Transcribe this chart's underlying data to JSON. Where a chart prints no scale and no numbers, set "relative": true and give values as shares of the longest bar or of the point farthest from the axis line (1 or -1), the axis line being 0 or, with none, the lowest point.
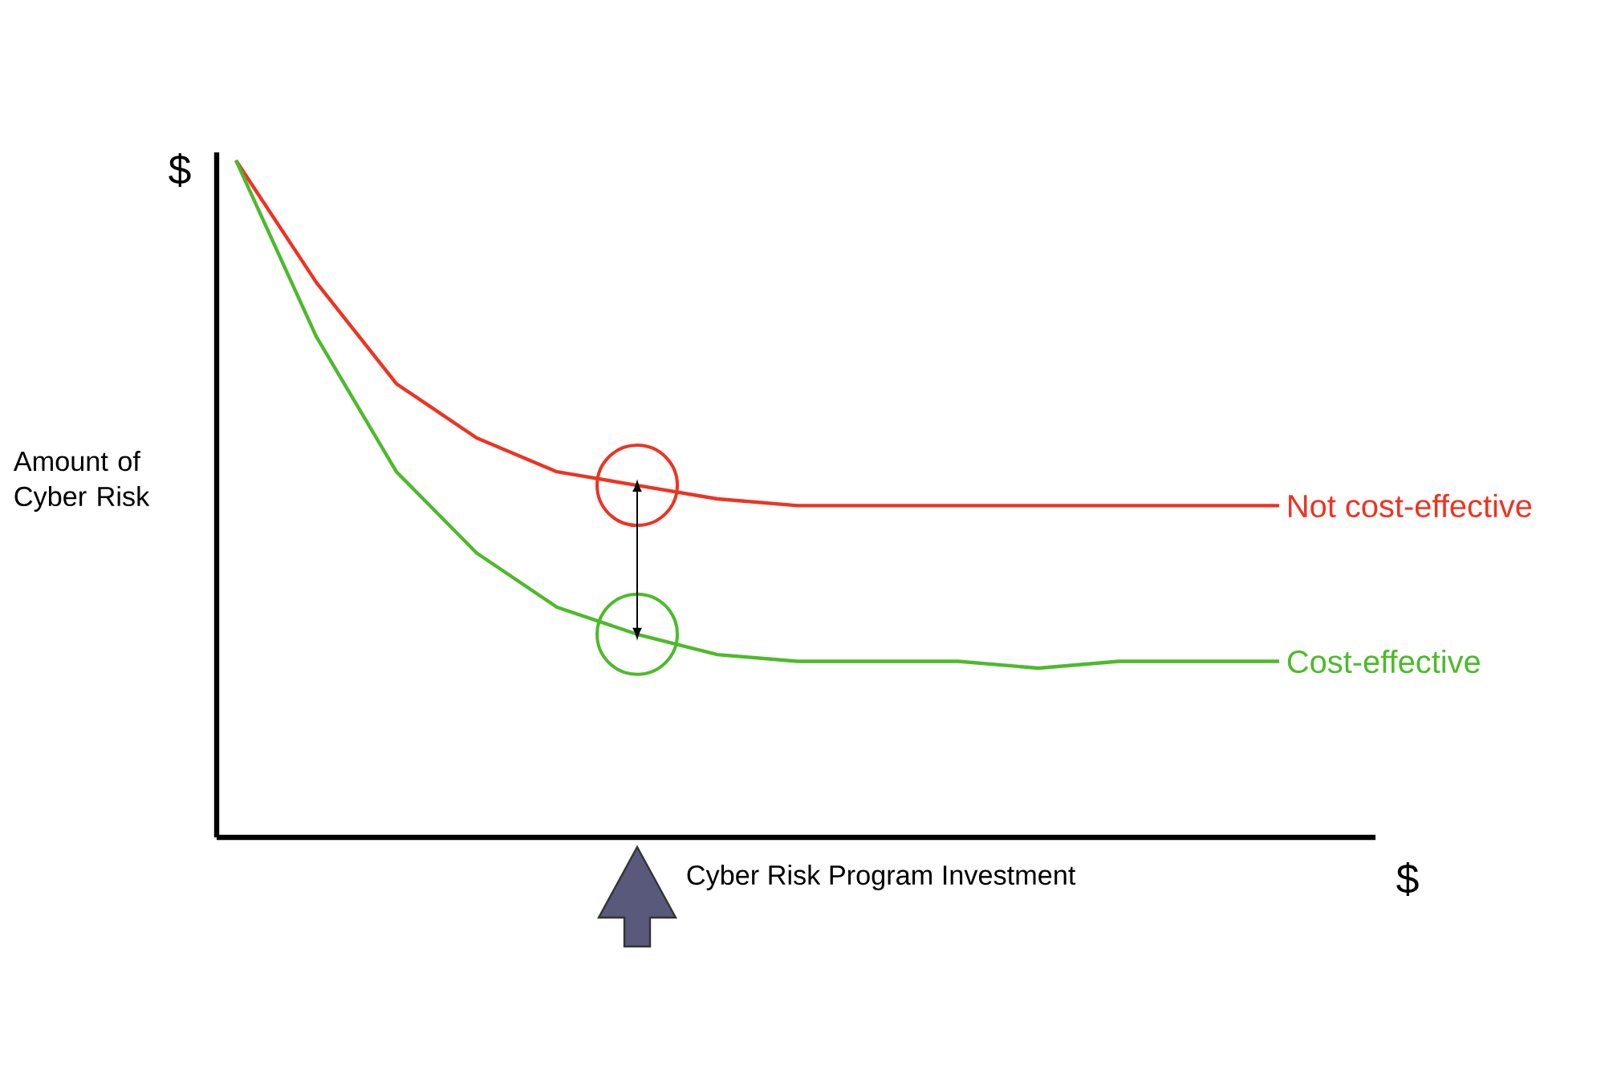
{
  "chart_data": {
    "type": "line",
    "relative": true,
    "xlabel": "Cyber Risk Program Investment",
    "ylabel": "Amount of Cyber Risk",
    "annotations": [
      "$",
      "$"
    ],
    "categories": [
      null,
      null,
      null,
      null,
      null,
      null,
      null,
      null,
      null,
      null,
      null,
      null,
      null,
      null
    ],
    "series": [
      {
        "name": "Not cost-effective",
        "color": "#ee3322",
        "values": [
          1.0,
          0.82,
          0.67,
          0.59,
          0.54,
          0.52,
          0.5,
          0.49,
          0.49,
          0.49,
          0.49,
          0.49,
          0.49,
          0.49
        ]
      },
      {
        "name": "Cost-effective",
        "color": "#4cbb2a",
        "values": [
          1.0,
          0.74,
          0.54,
          0.42,
          0.34,
          0.3,
          0.27,
          0.26,
          0.26,
          0.26,
          0.25,
          0.26,
          0.26,
          0.26
        ]
      }
    ],
    "marker": "none",
    "line_style": "solid"
  }
}
